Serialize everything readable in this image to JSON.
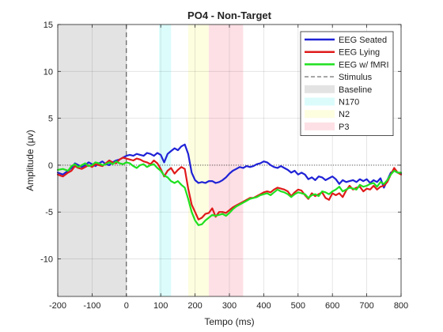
{
  "chart_data": {
    "type": "line",
    "title": "PO4 - Non-Target",
    "xlabel": "Tempo (ms)",
    "ylabel": "Amplitude (μv)",
    "xlim": [
      -200,
      800
    ],
    "ylim": [
      -14,
      15
    ],
    "xticks": [
      -200,
      -100,
      0,
      100,
      200,
      300,
      400,
      500,
      600,
      700,
      800
    ],
    "yticks": [
      -10,
      -5,
      0,
      5,
      10,
      15
    ],
    "grid": true,
    "legend_position": "top-right",
    "zero_line": {
      "y": 0,
      "style": "dotted"
    },
    "regions": [
      {
        "name": "Baseline",
        "x": [
          -200,
          0
        ],
        "color": "#e3e3e3"
      },
      {
        "name": "N170",
        "x": [
          95,
          130
        ],
        "color": "#dcfcfc"
      },
      {
        "name": "N2",
        "x": [
          180,
          240
        ],
        "color": "#fdfde0"
      },
      {
        "name": "P3",
        "x": [
          240,
          340
        ],
        "color": "#fde0e6"
      }
    ],
    "stimulus": {
      "name": "Stimulus",
      "x": 0
    },
    "series": [
      {
        "name": "EEG Seated",
        "color": "#1f22d6",
        "x": [
          -200,
          -185,
          -170,
          -160,
          -150,
          -140,
          -130,
          -120,
          -110,
          -100,
          -90,
          -80,
          -70,
          -60,
          -50,
          -40,
          -30,
          -20,
          -10,
          0,
          10,
          20,
          30,
          40,
          50,
          60,
          70,
          80,
          90,
          100,
          110,
          120,
          130,
          140,
          150,
          160,
          170,
          180,
          190,
          200,
          210,
          220,
          230,
          240,
          250,
          260,
          270,
          280,
          290,
          300,
          310,
          320,
          330,
          340,
          350,
          360,
          370,
          380,
          390,
          400,
          410,
          420,
          430,
          440,
          450,
          460,
          470,
          480,
          490,
          500,
          510,
          520,
          530,
          540,
          550,
          560,
          570,
          580,
          590,
          600,
          610,
          620,
          630,
          640,
          650,
          660,
          670,
          680,
          690,
          700,
          710,
          720,
          730,
          740,
          750,
          760,
          770,
          780,
          790,
          800
        ],
        "values": [
          -0.8,
          -1.0,
          -0.6,
          -0.3,
          0.2,
          0.0,
          -0.2,
          0.0,
          0.3,
          0.1,
          -0.1,
          0.2,
          0.4,
          0.1,
          0.0,
          0.3,
          0.5,
          0.6,
          0.8,
          1.0,
          1.1,
          1.0,
          1.2,
          1.1,
          1.0,
          1.3,
          1.2,
          1.0,
          1.3,
          1.1,
          0.3,
          1.2,
          1.5,
          1.8,
          1.6,
          2.0,
          2.2,
          1.2,
          -0.8,
          -1.6,
          -1.9,
          -1.8,
          -1.9,
          -1.7,
          -1.7,
          -1.9,
          -1.8,
          -1.6,
          -1.3,
          -0.9,
          -0.6,
          -0.4,
          -0.2,
          -0.3,
          -0.1,
          -0.2,
          -0.1,
          0.1,
          0.2,
          0.4,
          0.3,
          0.0,
          -0.2,
          -0.3,
          -0.1,
          -0.3,
          -0.5,
          -0.8,
          -0.6,
          -1.0,
          -0.8,
          -1.0,
          -1.5,
          -1.3,
          -1.6,
          -1.2,
          -1.3,
          -1.6,
          -1.4,
          -1.2,
          -1.5,
          -2.0,
          -1.6,
          -1.8,
          -1.7,
          -1.6,
          -1.8,
          -1.5,
          -1.7,
          -1.5,
          -1.9,
          -1.6,
          -1.8,
          -1.4,
          -2.4,
          -1.6,
          -0.8,
          -0.6,
          -0.8,
          -0.9
        ]
      },
      {
        "name": "EEG Lying",
        "color": "#e01a1a",
        "x": [
          -200,
          -185,
          -170,
          -160,
          -150,
          -140,
          -130,
          -120,
          -110,
          -100,
          -90,
          -80,
          -70,
          -60,
          -50,
          -40,
          -30,
          -20,
          -10,
          0,
          10,
          20,
          30,
          40,
          50,
          60,
          70,
          80,
          90,
          100,
          110,
          120,
          130,
          140,
          150,
          160,
          170,
          180,
          190,
          200,
          210,
          220,
          230,
          240,
          250,
          260,
          270,
          280,
          290,
          300,
          310,
          320,
          330,
          340,
          350,
          360,
          370,
          380,
          390,
          400,
          410,
          420,
          430,
          440,
          450,
          460,
          470,
          480,
          490,
          500,
          510,
          520,
          530,
          540,
          550,
          560,
          570,
          580,
          590,
          600,
          610,
          620,
          630,
          640,
          650,
          660,
          670,
          680,
          690,
          700,
          710,
          720,
          730,
          740,
          750,
          760,
          770,
          780,
          790,
          800
        ],
        "values": [
          -1.0,
          -1.2,
          -0.8,
          -0.6,
          -0.1,
          -0.3,
          -0.4,
          -0.2,
          0.0,
          -0.2,
          0.1,
          0.0,
          -0.1,
          0.2,
          0.5,
          0.3,
          0.2,
          0.6,
          0.8,
          0.7,
          0.6,
          0.5,
          0.7,
          0.6,
          0.4,
          0.3,
          0.1,
          0.5,
          0.2,
          -0.4,
          -1.2,
          -0.6,
          -0.3,
          -0.9,
          -0.5,
          -0.2,
          -0.4,
          -2.5,
          -4.2,
          -5.0,
          -5.8,
          -5.6,
          -5.2,
          -5.1,
          -4.6,
          -5.5,
          -5.0,
          -5.0,
          -5.1,
          -4.8,
          -4.5,
          -4.3,
          -4.1,
          -3.9,
          -3.7,
          -3.5,
          -3.5,
          -3.3,
          -3.1,
          -2.9,
          -2.8,
          -2.9,
          -2.6,
          -2.4,
          -2.5,
          -2.6,
          -2.8,
          -3.3,
          -2.9,
          -2.6,
          -2.7,
          -3.2,
          -3.6,
          -3.0,
          -3.3,
          -3.1,
          -2.9,
          -3.5,
          -3.7,
          -3.0,
          -3.2,
          -3.0,
          -3.4,
          -2.7,
          -2.2,
          -2.6,
          -2.4,
          -2.3,
          -2.8,
          -2.5,
          -2.6,
          -2.2,
          -2.6,
          -2.3,
          -2.2,
          -1.8,
          -1.0,
          -0.3,
          -0.8,
          -1.0
        ]
      },
      {
        "name": "EEG w/ fMRI",
        "color": "#1fe01f",
        "x": [
          -200,
          -185,
          -170,
          -160,
          -150,
          -140,
          -130,
          -120,
          -110,
          -100,
          -90,
          -80,
          -70,
          -60,
          -50,
          -40,
          -30,
          -20,
          -10,
          0,
          10,
          20,
          30,
          40,
          50,
          60,
          70,
          80,
          90,
          100,
          110,
          120,
          130,
          140,
          150,
          160,
          170,
          180,
          190,
          200,
          210,
          220,
          230,
          240,
          250,
          260,
          270,
          280,
          290,
          300,
          310,
          320,
          330,
          340,
          350,
          360,
          370,
          380,
          390,
          400,
          410,
          420,
          430,
          440,
          450,
          460,
          470,
          480,
          490,
          500,
          510,
          520,
          530,
          540,
          550,
          560,
          570,
          580,
          590,
          600,
          610,
          620,
          630,
          640,
          650,
          660,
          670,
          680,
          690,
          700,
          710,
          720,
          730,
          740,
          750,
          760,
          770,
          780,
          790,
          800
        ],
        "values": [
          -0.5,
          -0.4,
          -0.6,
          -0.1,
          0.1,
          -0.2,
          0.0,
          0.2,
          -0.1,
          0.0,
          0.3,
          0.2,
          0.0,
          0.1,
          0.3,
          0.1,
          0.4,
          0.2,
          0.1,
          0.3,
          0.2,
          -0.1,
          -0.3,
          0.0,
          0.1,
          -0.2,
          0.0,
          0.1,
          -0.3,
          -0.6,
          -1.1,
          -1.3,
          -1.7,
          -1.9,
          -1.7,
          -2.1,
          -2.4,
          -3.6,
          -5.0,
          -5.9,
          -6.4,
          -6.3,
          -5.9,
          -5.6,
          -5.3,
          -5.4,
          -5.3,
          -5.2,
          -5.4,
          -5.1,
          -4.7,
          -4.4,
          -4.2,
          -4.0,
          -3.8,
          -3.6,
          -3.5,
          -3.4,
          -3.2,
          -3.1,
          -3.0,
          -3.2,
          -2.9,
          -2.6,
          -2.8,
          -2.9,
          -3.1,
          -3.4,
          -3.1,
          -2.9,
          -3.0,
          -3.1,
          -3.5,
          -3.2,
          -3.1,
          -3.3,
          -2.8,
          -2.9,
          -3.1,
          -2.8,
          -2.6,
          -2.3,
          -2.8,
          -2.6,
          -2.4,
          -2.5,
          -2.6,
          -2.1,
          -2.3,
          -2.2,
          -2.0,
          -1.9,
          -2.3,
          -1.8,
          -2.0,
          -1.6,
          -1.0,
          -0.6,
          -0.8,
          -0.8
        ]
      }
    ]
  }
}
